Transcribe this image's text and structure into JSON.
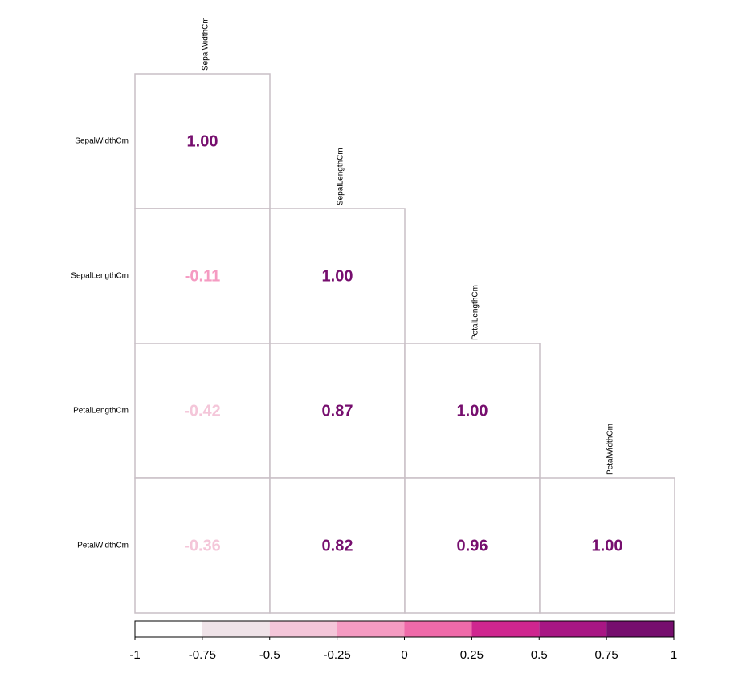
{
  "chart_data": {
    "type": "heatmap",
    "variables": [
      "SepalWidthCm",
      "SepalLengthCm",
      "PetalLengthCm",
      "PetalWidthCm"
    ],
    "matrix": [
      [
        1.0,
        -0.11,
        -0.42,
        -0.36
      ],
      [
        -0.11,
        1.0,
        0.87,
        0.82
      ],
      [
        -0.42,
        0.87,
        1.0,
        0.96
      ],
      [
        -0.36,
        0.82,
        0.96,
        1.0
      ]
    ],
    "value_labels": [
      [
        "1.00",
        "",
        "",
        ""
      ],
      [
        "-0.11",
        "1.00",
        "",
        ""
      ],
      [
        "-0.42",
        "0.87",
        "1.00",
        ""
      ],
      [
        "-0.36",
        "0.82",
        "0.96",
        "1.00"
      ]
    ],
    "layout": "lower-triangle",
    "value_range": [
      -1,
      1
    ],
    "colorbar": {
      "ticks": [
        -1,
        -0.75,
        -0.5,
        -0.25,
        0,
        0.25,
        0.5,
        0.75,
        1
      ],
      "tick_labels": [
        "-1",
        "-0.75",
        "-0.5",
        "-0.25",
        "0",
        "0.25",
        "0.5",
        "0.75",
        "1"
      ],
      "bins": [
        {
          "from": -1,
          "to": -0.75,
          "color": "#ffffff"
        },
        {
          "from": -0.75,
          "to": -0.5,
          "color": "#efe3e8"
        },
        {
          "from": -0.5,
          "to": -0.25,
          "color": "#f4c6d9"
        },
        {
          "from": -0.25,
          "to": 0,
          "color": "#f59bc2"
        },
        {
          "from": 0,
          "to": 0.25,
          "color": "#ef6aa9"
        },
        {
          "from": 0.25,
          "to": 0.5,
          "color": "#cf268f"
        },
        {
          "from": 0.5,
          "to": 0.75,
          "color": "#a81684"
        },
        {
          "from": 0.75,
          "to": 1,
          "color": "#760e6e"
        }
      ],
      "placement": "bottom"
    },
    "grid": true,
    "title": "",
    "xlabel": "",
    "ylabel": ""
  },
  "colors": {
    "cell_border": "#c9bfc6",
    "axis_text": "#000000"
  }
}
